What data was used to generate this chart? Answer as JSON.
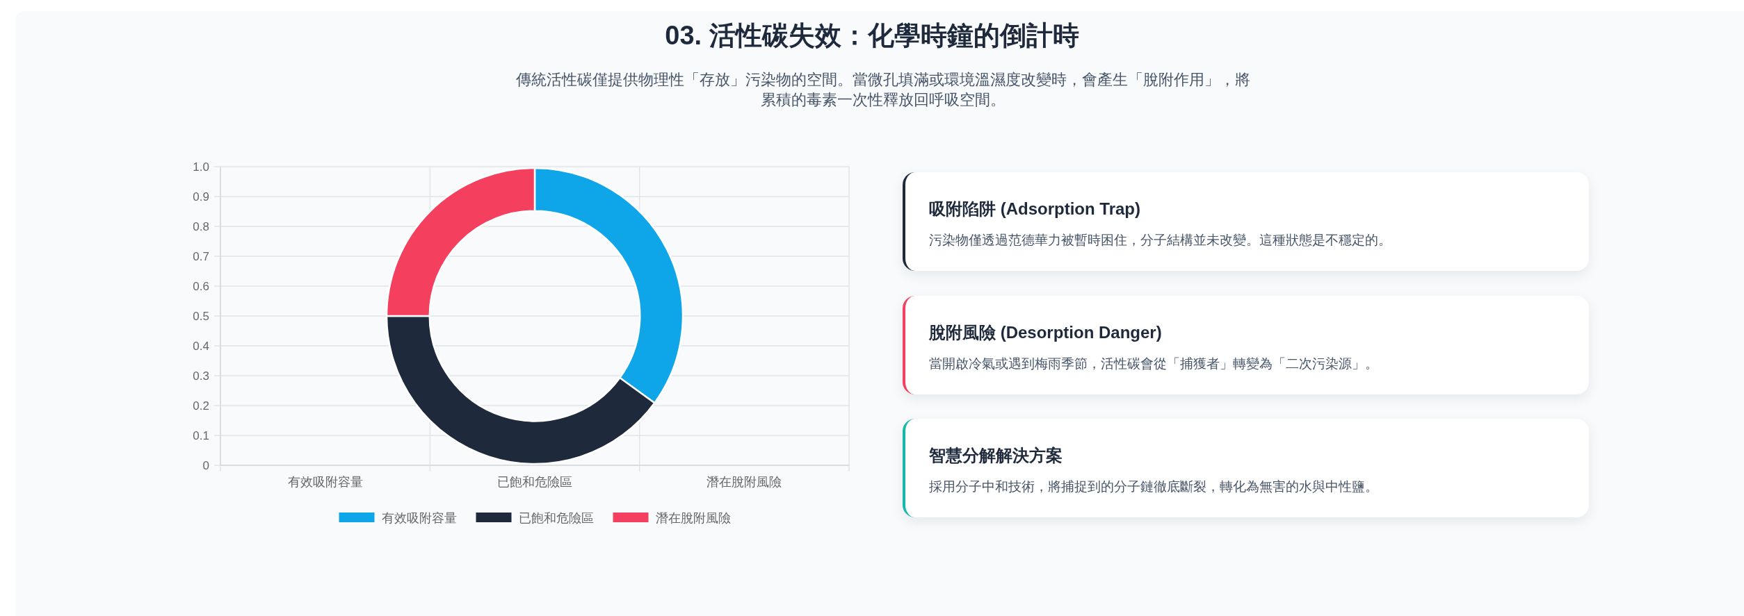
{
  "chart_data": [
    {
      "type": "bar",
      "title": "03. 活性碳失效：化學時鐘的倒計時",
      "subtitle": "傳統活性碳僅提供物理性「存放」污染物的空間。當微孔填滿或環境溫濕度改變時，會產生「脫附作用」，將累積的毒素一次性釋放回呼吸空間。",
      "categories": [
        "有效吸附容量",
        "已飽和危險區",
        "潛在脫附風險"
      ],
      "values": [
        null,
        null,
        null
      ],
      "ylim": [
        0,
        1
      ],
      "yticks": [
        0,
        0.1,
        0.2,
        0.3,
        0.4,
        0.5,
        0.6,
        0.7,
        0.8,
        0.9,
        {
          "value": 1,
          "label": "1.0"
        }
      ],
      "grid": true
    },
    {
      "type": "donut",
      "categories": [
        "有效吸附容量",
        "已飽和危險區",
        "潛在脫附風險"
      ],
      "values": [
        35,
        40,
        25
      ],
      "colors": [
        "#0ea5e9",
        "#1e293b",
        "#f43f5e"
      ],
      "legend": "bottom"
    },
    {
      "type": "other",
      "annotations": [
        "吸附陷阱 (Adsorption Trap)",
        "污染物僅透過范德華力被暫時困住，分子結構並未改變。這種狀態是不穩定的。",
        "脫附風險 (Desorption Danger)",
        "當開啟冷氣或遇到梅雨季節，活性碳會從「捕獲者」轉變為「二次污染源」。",
        "智慧分解解決方案",
        "採用分子中和技術，將捕捉到的分子鏈徹底斷裂，轉化為無害的水與中性鹽。"
      ]
    }
  ]
}
